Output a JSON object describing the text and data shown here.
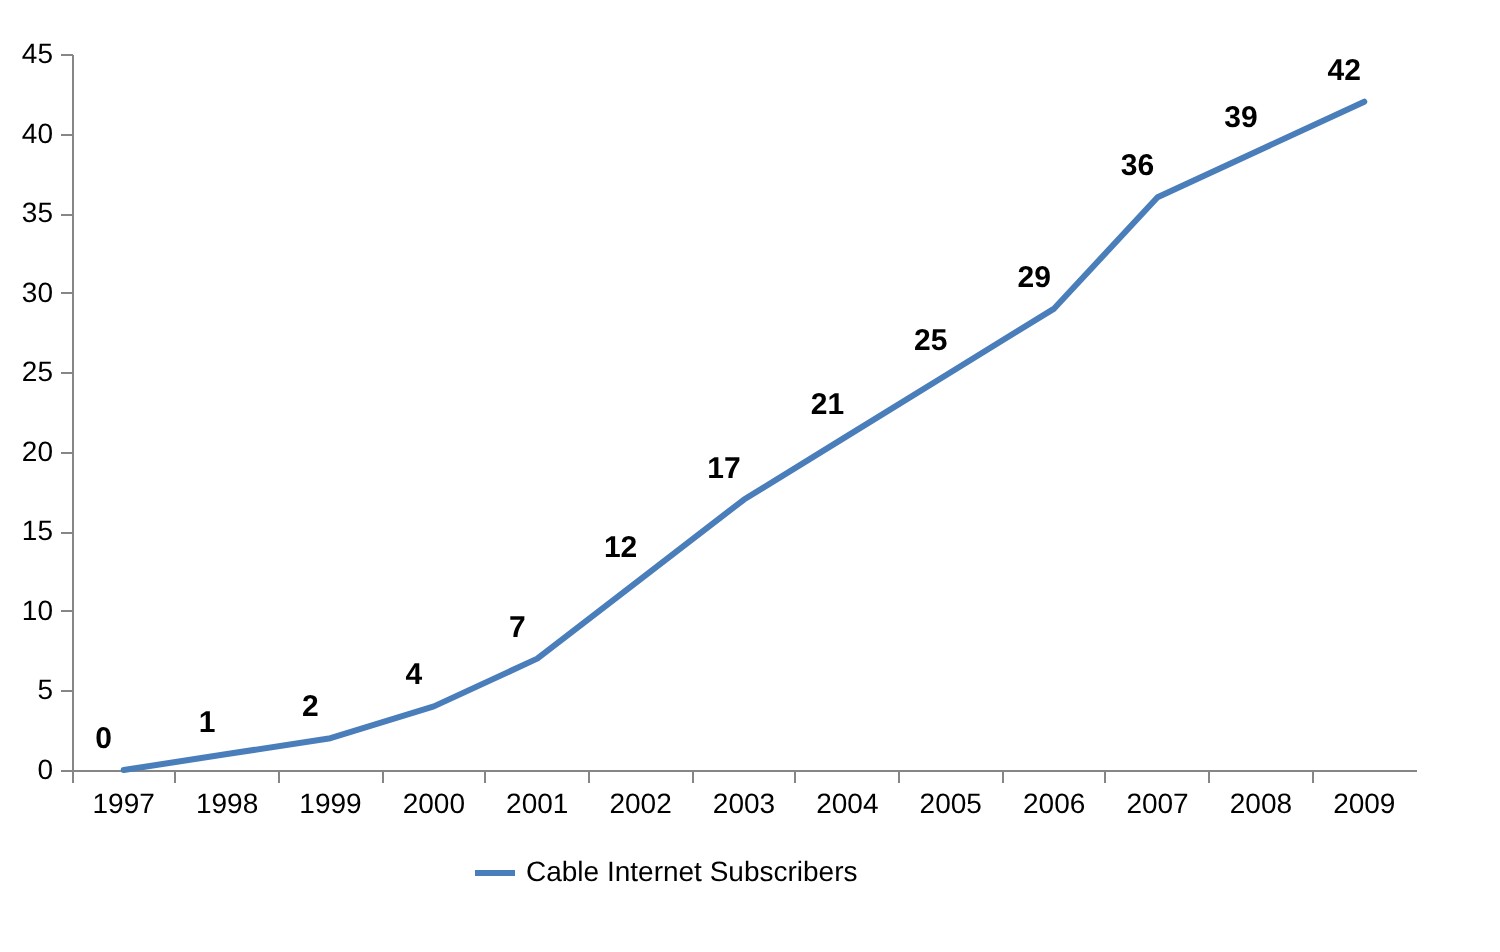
{
  "chart_data": {
    "type": "line",
    "categories": [
      "1997",
      "1998",
      "1999",
      "2000",
      "2001",
      "2002",
      "2003",
      "2004",
      "2005",
      "2006",
      "2007",
      "2008",
      "2009"
    ],
    "series": [
      {
        "name": "Cable Internet Subscribers",
        "color": "#4a7ebb",
        "values": [
          0,
          1,
          2,
          4,
          7,
          12,
          17,
          21,
          25,
          29,
          36,
          39,
          42
        ]
      }
    ],
    "ylim": [
      0,
      45
    ],
    "yticks": [
      0,
      5,
      10,
      15,
      20,
      25,
      30,
      35,
      40,
      45
    ],
    "data_labels": true,
    "grid": false,
    "legend": "bottom",
    "marker": "none"
  }
}
